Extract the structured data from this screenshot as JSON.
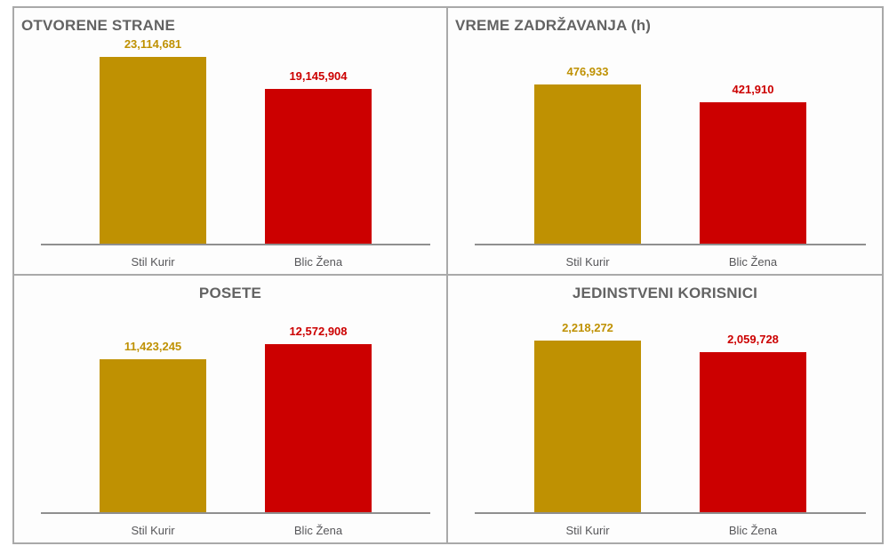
{
  "page": {
    "background": "#ffffff",
    "border_color": "#a9a9a9",
    "axis_color": "#8f8f8f",
    "title_color": "#636363",
    "category_label_color": "#57575a",
    "brand_colors": {
      "stil_kurir_gold": "#BF9102",
      "blic_zena_red": "#CC0000"
    }
  },
  "chart_data": [
    {
      "type": "bar",
      "title": "OTVORENE STRANE",
      "title_align": "left",
      "categories": [
        "Stil Kurir",
        "Blic Žena"
      ],
      "values": [
        23114681,
        19145904
      ],
      "value_labels": [
        "23,114,681",
        "19,145,904"
      ],
      "bar_colors": [
        "#BF9102",
        "#CC0000"
      ],
      "xlabel": "",
      "ylabel": "",
      "ylim": [
        0,
        24000000
      ],
      "grid": false,
      "legend": "none"
    },
    {
      "type": "bar",
      "title": "VREME ZADRŽAVANJA (h)",
      "title_align": "left",
      "categories": [
        "Stil Kurir",
        "Blic Žena"
      ],
      "values": [
        476933,
        421910
      ],
      "value_labels": [
        "476,933",
        "421,910"
      ],
      "bar_colors": [
        "#BF9102",
        "#CC0000"
      ],
      "xlabel": "",
      "ylabel": "",
      "ylim": [
        0,
        580000
      ],
      "grid": false,
      "legend": "none"
    },
    {
      "type": "bar",
      "title": "POSETE",
      "title_align": "center",
      "categories": [
        "Stil Kurir",
        "Blic Žena"
      ],
      "values": [
        11423245,
        12572908
      ],
      "value_labels": [
        "11,423,245",
        "12,572,908"
      ],
      "bar_colors": [
        "#BF9102",
        "#CC0000"
      ],
      "xlabel": "",
      "ylabel": "",
      "ylim": [
        0,
        14500000
      ],
      "grid": false,
      "legend": "none"
    },
    {
      "type": "bar",
      "title": "JEDINSTVENI KORISNICI",
      "title_align": "center",
      "categories": [
        "Stil Kurir",
        "Blic Žena"
      ],
      "values": [
        2218272,
        2059728
      ],
      "value_labels": [
        "2,218,272",
        "2,059,728"
      ],
      "bar_colors": [
        "#BF9102",
        "#CC0000"
      ],
      "xlabel": "",
      "ylabel": "",
      "ylim": [
        0,
        2500000
      ],
      "grid": false,
      "legend": "none"
    }
  ]
}
